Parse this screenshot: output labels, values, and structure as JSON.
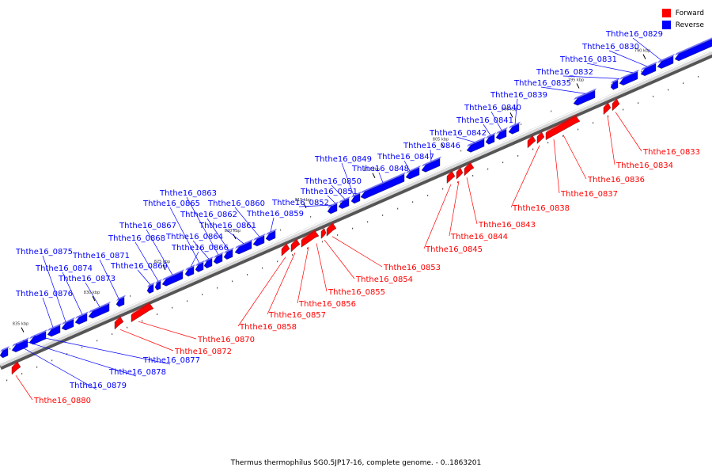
{
  "legend": {
    "items": [
      {
        "label": "Forward",
        "color": "#ff0000"
      },
      {
        "label": "Reverse",
        "color": "#0000ff"
      }
    ]
  },
  "caption": "Thermus thermophilus SG0.5JP17-16, complete genome. - 0..1863201",
  "colors": {
    "forward": "#ff0000",
    "reverse": "#0000ff",
    "backbone": "#c8c8c8"
  },
  "ticks": [
    "790 kbp",
    "795 kbp",
    "800 kbp",
    "805 kbp",
    "810 kbp",
    "815 kbp",
    "820 kbp",
    "825 kbp",
    "830 kbp",
    "835 kbp"
  ],
  "genes": {
    "reverse": [
      "Ththe16_0829",
      "Ththe16_0830",
      "Ththe16_0831",
      "Ththe16_0832",
      "Ththe16_0835",
      "Ththe16_0839",
      "Ththe16_0840",
      "Ththe16_0841",
      "Ththe16_0842",
      "Ththe16_0846",
      "Ththe16_0847",
      "Ththe16_0848",
      "Ththe16_0849",
      "Ththe16_0850",
      "Ththe16_0851",
      "Ththe16_0852",
      "Ththe16_0859",
      "Ththe16_0860",
      "Ththe16_0861",
      "Ththe16_0862",
      "Ththe16_0863",
      "Ththe16_0864",
      "Ththe16_0865",
      "Ththe16_0866",
      "Ththe16_0867",
      "Ththe16_0868",
      "Ththe16_0869",
      "Ththe16_0871",
      "Ththe16_0873",
      "Ththe16_0874",
      "Ththe16_0875",
      "Ththe16_0876",
      "Ththe16_0877",
      "Ththe16_0878",
      "Ththe16_0879"
    ],
    "forward": [
      "Ththe16_0833",
      "Ththe16_0834",
      "Ththe16_0836",
      "Ththe16_0837",
      "Ththe16_0838",
      "Ththe16_0843",
      "Ththe16_0844",
      "Ththe16_0845",
      "Ththe16_0853",
      "Ththe16_0854",
      "Ththe16_0855",
      "Ththe16_0856",
      "Ththe16_0857",
      "Ththe16_0858",
      "Ththe16_0870",
      "Ththe16_0872",
      "Ththe16_0880"
    ]
  }
}
